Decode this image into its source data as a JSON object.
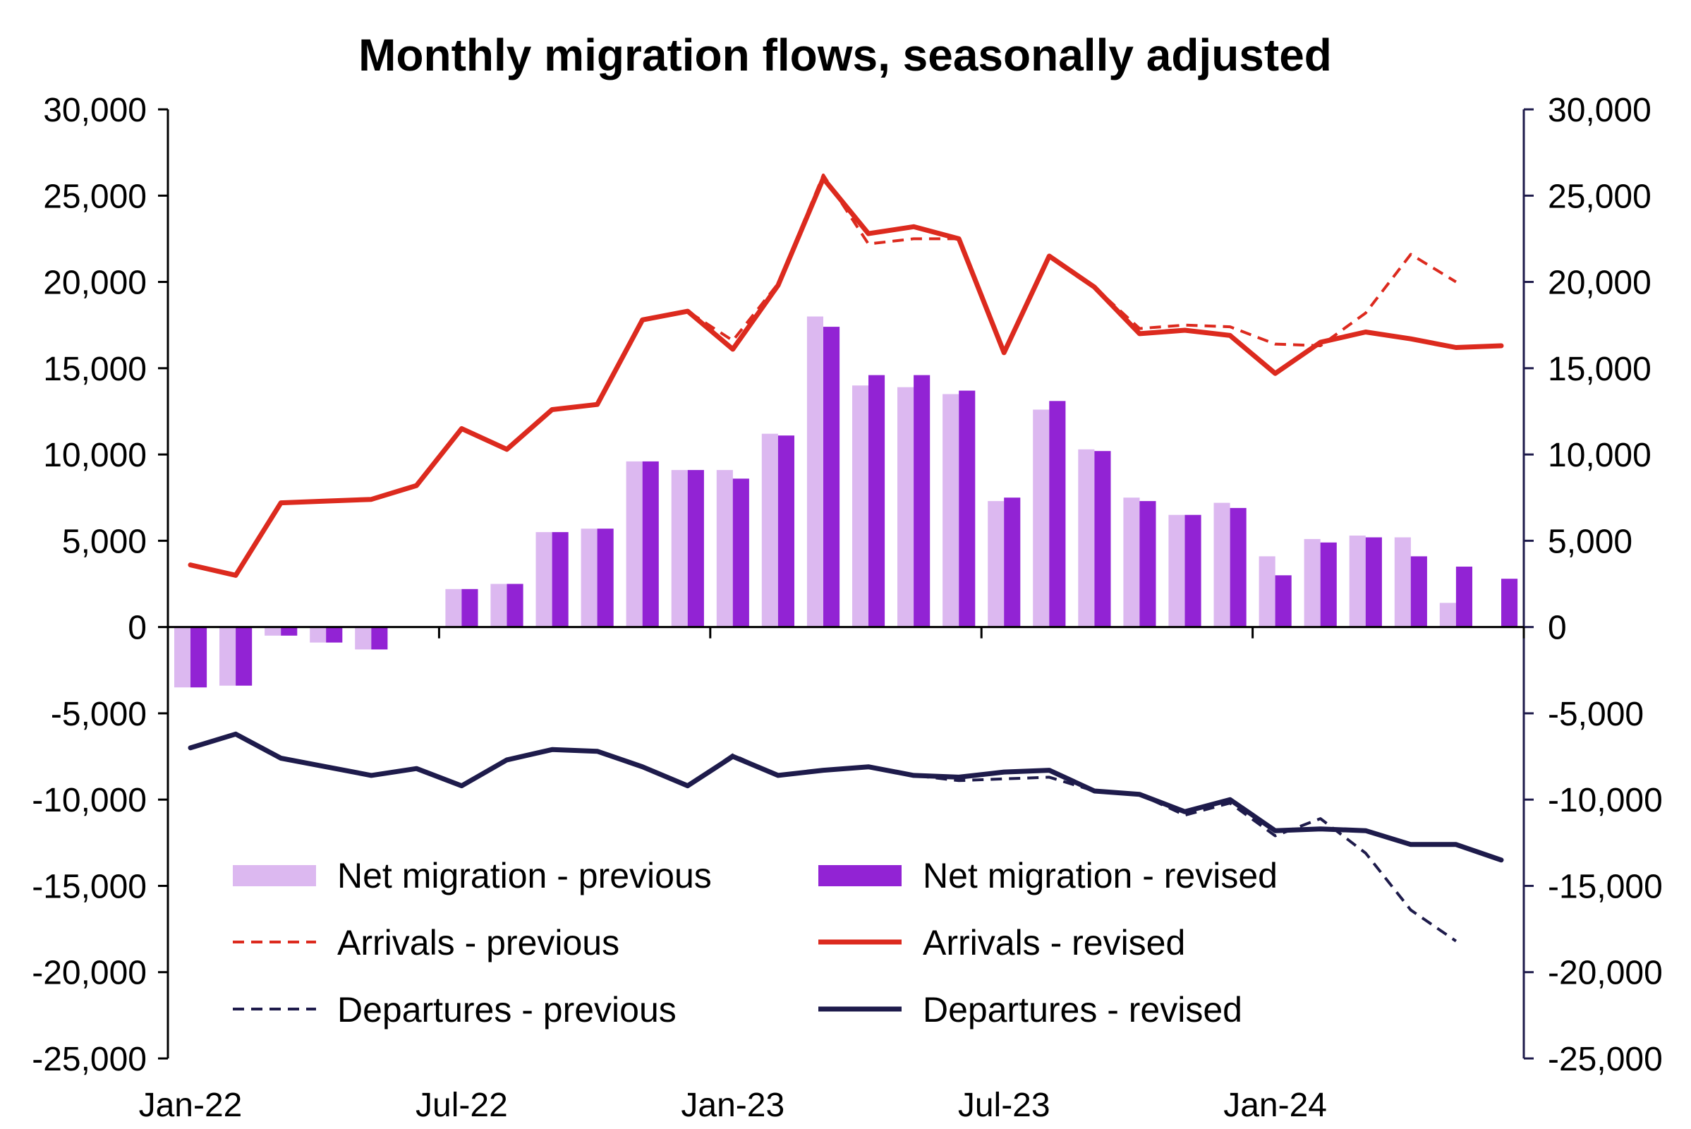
{
  "chart_data": {
    "type": "bar",
    "title": "Monthly migration flows, seasonally adjusted",
    "xlabel": "",
    "ylabel": "",
    "ylim": [
      -25000,
      30000
    ],
    "y2lim": [
      -25000,
      30000
    ],
    "yticks": [
      "30,000",
      "25,000",
      "20,000",
      "15,000",
      "10,000",
      "5,000",
      "0",
      "-5,000",
      "-10,000",
      "-15,000",
      "-20,000",
      "-25,000"
    ],
    "xtick_labels": [
      "Jan-22",
      "Jul-22",
      "Jan-23",
      "Jul-23",
      "Jan-24"
    ],
    "grid": false,
    "legend_position": "bottom-center (inside plot)",
    "x": [
      "Jan-22",
      "Feb-22",
      "Mar-22",
      "Apr-22",
      "May-22",
      "Jun-22",
      "Jul-22",
      "Aug-22",
      "Sep-22",
      "Oct-22",
      "Nov-22",
      "Dec-22",
      "Jan-23",
      "Feb-23",
      "Mar-23",
      "Apr-23",
      "May-23",
      "Jun-23",
      "Jul-23",
      "Aug-23",
      "Sep-23",
      "Oct-23",
      "Nov-23",
      "Dec-23",
      "Jan-24",
      "Feb-24",
      "Mar-24",
      "Apr-24",
      "May-24",
      "Jun-24"
    ],
    "series": [
      {
        "name": "Net migration - previous",
        "type": "bar",
        "color": "#dcb8f0",
        "values": [
          -3500,
          -3400,
          -500,
          -900,
          -1300,
          0,
          2200,
          2500,
          5500,
          5700,
          9600,
          9100,
          9100,
          11200,
          18000,
          14000,
          13900,
          13500,
          7300,
          12600,
          10300,
          7500,
          6500,
          7200,
          4100,
          5100,
          5300,
          5200,
          1400,
          null
        ]
      },
      {
        "name": "Net migration - revised",
        "type": "bar",
        "color": "#9223d4",
        "values": [
          -3500,
          -3400,
          -500,
          -900,
          -1300,
          0,
          2200,
          2500,
          5500,
          5700,
          9600,
          9100,
          8600,
          11100,
          17400,
          14600,
          14600,
          13700,
          7500,
          13100,
          10200,
          7300,
          6500,
          6900,
          3000,
          4900,
          5200,
          4100,
          3500,
          2800
        ]
      },
      {
        "name": "Arrivals - previous",
        "type": "line",
        "dashed": true,
        "color": "#dc2a1e",
        "values": [
          3600,
          3000,
          7200,
          7300,
          7400,
          8200,
          11500,
          10300,
          12600,
          12900,
          17800,
          18300,
          16600,
          19900,
          26200,
          22200,
          22500,
          22500,
          15900,
          21500,
          19700,
          17300,
          17500,
          17400,
          16400,
          16300,
          18200,
          21600,
          20000,
          null
        ]
      },
      {
        "name": "Arrivals - revised",
        "type": "line",
        "dashed": false,
        "color": "#dc2a1e",
        "values": [
          3600,
          3000,
          7200,
          7300,
          7400,
          8200,
          11500,
          10300,
          12600,
          12900,
          17800,
          18300,
          16100,
          19800,
          26000,
          22800,
          23200,
          22500,
          15900,
          21500,
          19700,
          17000,
          17200,
          16900,
          14700,
          16500,
          17100,
          16700,
          16200,
          16300
        ]
      },
      {
        "name": "Departures - previous",
        "type": "line",
        "dashed": true,
        "color": "#1e1b4b",
        "values": [
          -7000,
          -6200,
          -7600,
          -8100,
          -8600,
          -8200,
          -9200,
          -7700,
          -7100,
          -7200,
          -8100,
          -9200,
          -7400,
          -8600,
          -8300,
          -8100,
          -8600,
          -8900,
          -8800,
          -8700,
          -9500,
          -9700,
          -10900,
          -10200,
          -12100,
          -11100,
          -13100,
          -16400,
          -18200,
          null
        ]
      },
      {
        "name": "Departures - revised",
        "type": "line",
        "dashed": false,
        "color": "#1e1b4b",
        "values": [
          -7000,
          -6200,
          -7600,
          -8100,
          -8600,
          -8200,
          -9200,
          -7700,
          -7100,
          -7200,
          -8100,
          -9200,
          -7500,
          -8600,
          -8300,
          -8100,
          -8600,
          -8700,
          -8400,
          -8300,
          -9500,
          -9700,
          -10700,
          -10000,
          -11800,
          -11700,
          -11800,
          -12600,
          -12600,
          -13500
        ]
      }
    ]
  }
}
